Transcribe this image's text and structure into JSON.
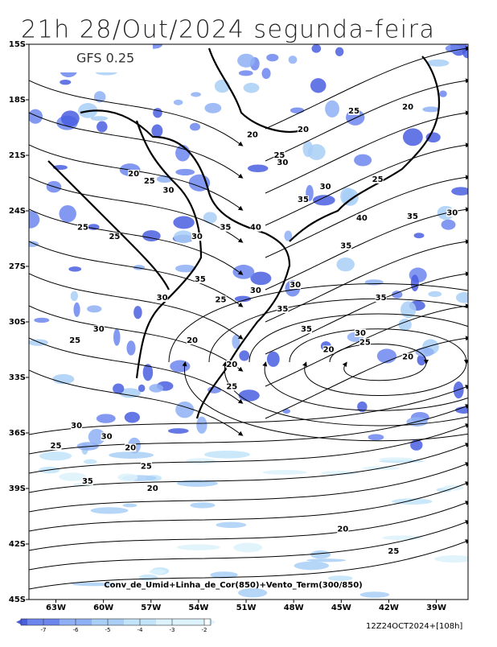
{
  "title": "21h 28/Out/2024 segunda-feira",
  "model": "GFS 0.25",
  "caption": "Conv_de_Umid+Linha_de_Cor(850)+Vento_Term(300/850)",
  "timestamp": "12Z24OCT2024+[108h]",
  "map": {
    "xlim": [
      -64.7,
      -37.0
    ],
    "ylim": [
      -45,
      -15
    ],
    "xticks": [
      {
        "value": -63,
        "label": "63W"
      },
      {
        "value": -60,
        "label": "60W"
      },
      {
        "value": -57,
        "label": "57W"
      },
      {
        "value": -54,
        "label": "54W"
      },
      {
        "value": -51,
        "label": "51W"
      },
      {
        "value": -48,
        "label": "48W"
      },
      {
        "value": -45,
        "label": "45W"
      },
      {
        "value": -42,
        "label": "42W"
      },
      {
        "value": -39,
        "label": "39W"
      }
    ],
    "yticks": [
      {
        "value": -15,
        "label": "15S"
      },
      {
        "value": -18,
        "label": "18S"
      },
      {
        "value": -21,
        "label": "21S"
      },
      {
        "value": -24,
        "label": "24S"
      },
      {
        "value": -27,
        "label": "27S"
      },
      {
        "value": -30,
        "label": "30S"
      },
      {
        "value": -33,
        "label": "33S"
      },
      {
        "value": -36,
        "label": "36S"
      },
      {
        "value": -39,
        "label": "39S"
      },
      {
        "value": -42,
        "label": "42S"
      },
      {
        "value": -45,
        "label": "45S"
      }
    ],
    "contour_labels": [
      {
        "lon": -44.2,
        "lat": -18.6,
        "value": 25
      },
      {
        "lon": -40.8,
        "lat": -18.4,
        "value": 20
      },
      {
        "lon": -47.4,
        "lat": -19.6,
        "value": 20
      },
      {
        "lon": -50.6,
        "lat": -19.9,
        "value": 20
      },
      {
        "lon": -48.9,
        "lat": -21.0,
        "value": 25
      },
      {
        "lon": -48.7,
        "lat": -21.4,
        "value": 30
      },
      {
        "lon": -58.1,
        "lat": -22.0,
        "value": 20
      },
      {
        "lon": -57.1,
        "lat": -22.4,
        "value": 25
      },
      {
        "lon": -55.9,
        "lat": -22.9,
        "value": 30
      },
      {
        "lon": -47.4,
        "lat": -23.4,
        "value": 35
      },
      {
        "lon": -46.0,
        "lat": -22.7,
        "value": 30
      },
      {
        "lon": -42.7,
        "lat": -22.3,
        "value": 25
      },
      {
        "lon": -43.7,
        "lat": -24.4,
        "value": 40
      },
      {
        "lon": -40.5,
        "lat": -24.3,
        "value": 35
      },
      {
        "lon": -38.0,
        "lat": -24.1,
        "value": 30
      },
      {
        "lon": -61.3,
        "lat": -24.9,
        "value": 25
      },
      {
        "lon": -59.3,
        "lat": -25.4,
        "value": 25
      },
      {
        "lon": -54.1,
        "lat": -25.4,
        "value": 30
      },
      {
        "lon": -52.3,
        "lat": -24.9,
        "value": 35
      },
      {
        "lon": -50.4,
        "lat": -24.9,
        "value": 40
      },
      {
        "lon": -44.7,
        "lat": -25.9,
        "value": 35
      },
      {
        "lon": -53.9,
        "lat": -27.7,
        "value": 35
      },
      {
        "lon": -50.4,
        "lat": -28.3,
        "value": 30
      },
      {
        "lon": -47.9,
        "lat": -28.0,
        "value": 30
      },
      {
        "lon": -56.3,
        "lat": -28.7,
        "value": 30
      },
      {
        "lon": -52.6,
        "lat": -28.8,
        "value": 25
      },
      {
        "lon": -48.7,
        "lat": -29.3,
        "value": 35
      },
      {
        "lon": -42.5,
        "lat": -28.7,
        "value": 35
      },
      {
        "lon": -60.3,
        "lat": -30.4,
        "value": 30
      },
      {
        "lon": -61.8,
        "lat": -31.0,
        "value": 25
      },
      {
        "lon": -54.4,
        "lat": -31.0,
        "value": 20
      },
      {
        "lon": -47.2,
        "lat": -30.4,
        "value": 35
      },
      {
        "lon": -43.8,
        "lat": -30.6,
        "value": 30
      },
      {
        "lon": -43.5,
        "lat": -31.1,
        "value": 25
      },
      {
        "lon": -45.8,
        "lat": -31.5,
        "value": 20
      },
      {
        "lon": -40.8,
        "lat": -31.9,
        "value": 20
      },
      {
        "lon": -51.9,
        "lat": -32.3,
        "value": 20
      },
      {
        "lon": -51.9,
        "lat": -33.5,
        "value": 25
      },
      {
        "lon": -61.7,
        "lat": -35.6,
        "value": 30
      },
      {
        "lon": -59.8,
        "lat": -36.2,
        "value": 30
      },
      {
        "lon": -63.0,
        "lat": -36.7,
        "value": 25
      },
      {
        "lon": -58.3,
        "lat": -36.8,
        "value": 20
      },
      {
        "lon": -57.3,
        "lat": -37.8,
        "value": 25
      },
      {
        "lon": -61.0,
        "lat": -38.6,
        "value": 35
      },
      {
        "lon": -56.9,
        "lat": -39.0,
        "value": 20
      },
      {
        "lon": -44.9,
        "lat": -41.2,
        "value": 20
      },
      {
        "lon": -41.7,
        "lat": -42.4,
        "value": 25
      }
    ]
  },
  "colorbar": {
    "ticks": [
      -7,
      -6,
      -5,
      -4,
      -3,
      -2
    ],
    "colors": [
      "#4a5ee0",
      "#6c86ee",
      "#8fb0f4",
      "#a9cff7",
      "#c2e4fa",
      "#dcf2fc"
    ]
  }
}
